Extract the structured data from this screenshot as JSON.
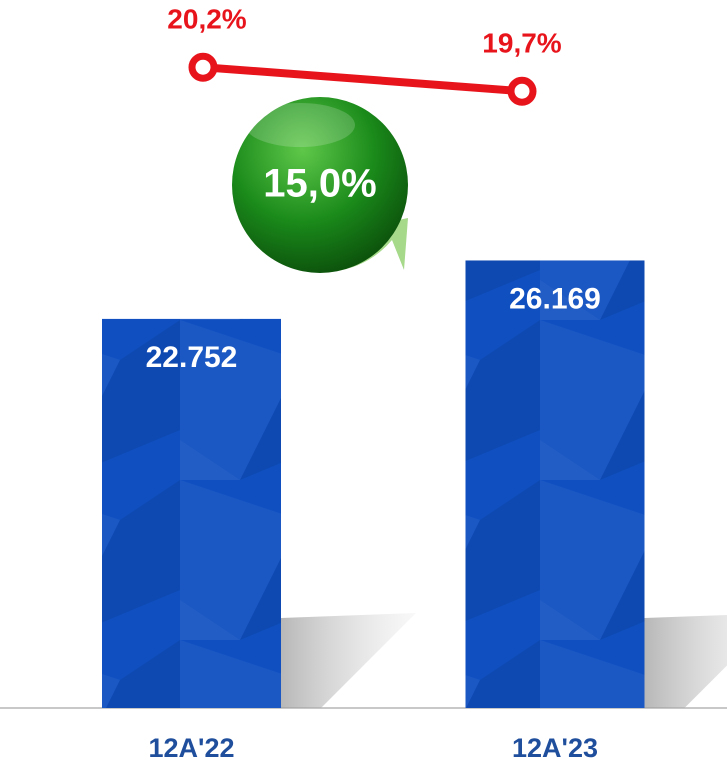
{
  "chart_data": {
    "type": "bar",
    "categories": [
      "12A'22",
      "12A'23"
    ],
    "ylim": [
      0,
      41400
    ],
    "y2lim": [
      6.85,
      21.6
    ],
    "series": [
      {
        "type": "bar",
        "color": "#0f4fc0",
        "values": [
          22752,
          26169
        ],
        "value_labels": [
          "22.752",
          "26.169"
        ]
      },
      {
        "type": "line",
        "axis": "y2",
        "color": "#e8141c",
        "values": [
          20.2,
          19.7
        ],
        "value_labels": [
          "20,2%",
          "19,7%"
        ]
      }
    ],
    "annotations": [
      {
        "text": "15,0%",
        "color": "#1e7d1e"
      }
    ]
  }
}
